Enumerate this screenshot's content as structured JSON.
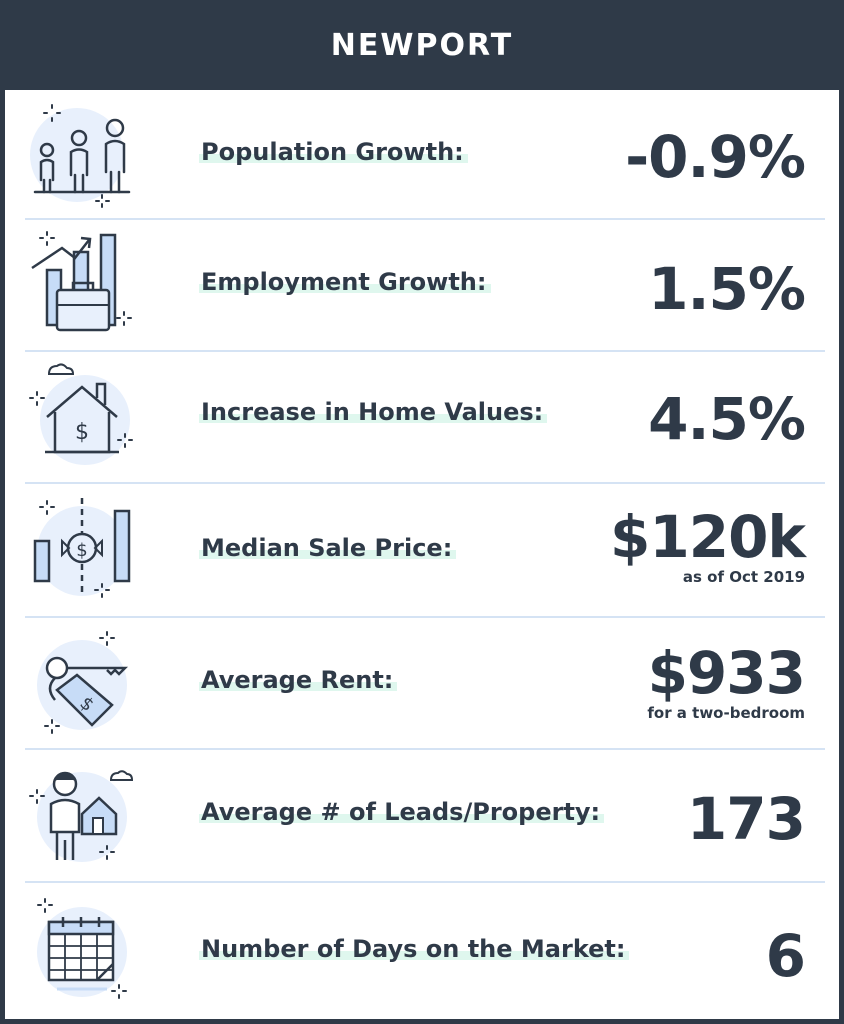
{
  "header": {
    "title": "NEWPORT"
  },
  "colors": {
    "dark": "#2f3a48",
    "icon_fill": "#e8f0fc",
    "icon_bar": "#c7dcf7",
    "highlight": "#dff7ee",
    "divider": "#d5e3f4"
  },
  "stats": [
    {
      "icon": "family-icon",
      "label": "Population Growth:",
      "value": "-0.9%",
      "note": ""
    },
    {
      "icon": "briefcase-chart-icon",
      "label": "Employment Growth:",
      "value": "1.5%",
      "note": ""
    },
    {
      "icon": "house-dollar-icon",
      "label": "Increase in Home Values:",
      "value": "4.5%",
      "note": ""
    },
    {
      "icon": "price-chart-icon",
      "label": "Median Sale Price:",
      "value": "$120k",
      "note": "as of Oct 2019"
    },
    {
      "icon": "key-tag-icon",
      "label": "Average Rent:",
      "value": "$933",
      "note": "for a two-bedroom"
    },
    {
      "icon": "person-house-icon",
      "label": "Average # of Leads/Property:",
      "value": "173",
      "note": ""
    },
    {
      "icon": "calendar-icon",
      "label": "Number of Days on the Market:",
      "value": "6",
      "note": ""
    }
  ]
}
